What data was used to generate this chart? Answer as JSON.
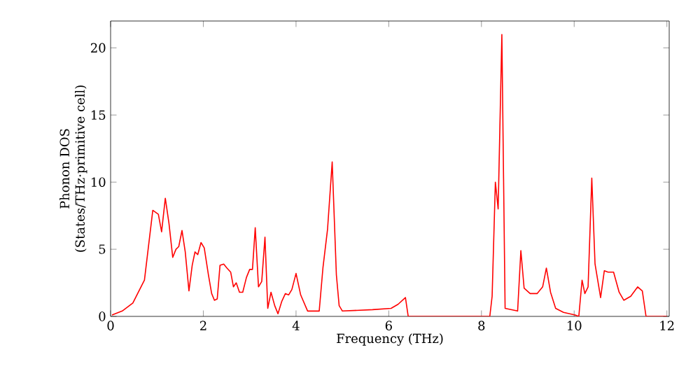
{
  "chart_data": {
    "type": "line",
    "xlabel": "Frequency (THz)",
    "ylabel": "Phonon DOS\n(States/THz·primitive cell)",
    "xlim": [
      0,
      12.05
    ],
    "ylim": [
      0,
      22
    ],
    "xticks": [
      0,
      2,
      4,
      6,
      8,
      10,
      12
    ],
    "yticks": [
      0,
      5,
      10,
      15,
      20
    ],
    "line_style": "solid",
    "marker": "none",
    "series": [
      {
        "color": "#ff0000",
        "x": [
          0.03,
          0.25,
          0.48,
          0.73,
          0.91,
          1.03,
          1.1,
          1.18,
          1.26,
          1.34,
          1.41,
          1.47,
          1.54,
          1.61,
          1.69,
          1.76,
          1.82,
          1.88,
          1.95,
          2.02,
          2.11,
          2.18,
          2.24,
          2.3,
          2.36,
          2.44,
          2.51,
          2.59,
          2.65,
          2.71,
          2.78,
          2.85,
          2.93,
          3.0,
          3.06,
          3.12,
          3.19,
          3.26,
          3.33,
          3.39,
          3.46,
          3.54,
          3.61,
          3.69,
          3.77,
          3.84,
          3.91,
          4.0,
          4.1,
          4.25,
          4.5,
          4.58,
          4.68,
          4.78,
          4.87,
          4.93,
          5.0,
          5.65,
          6.05,
          6.2,
          6.36,
          6.42,
          8.18,
          8.23,
          8.3,
          8.36,
          8.44,
          8.51,
          8.78,
          8.85,
          8.92,
          9.05,
          9.2,
          9.32,
          9.4,
          9.49,
          9.6,
          9.77,
          10.02,
          10.1,
          10.17,
          10.23,
          10.3,
          10.38,
          10.45,
          10.57,
          10.65,
          10.73,
          10.85,
          10.97,
          11.07,
          11.22,
          11.37,
          11.47,
          11.55,
          12.0
        ],
        "values": [
          0.1,
          0.4,
          1.0,
          2.7,
          7.9,
          7.6,
          6.3,
          8.8,
          6.9,
          4.4,
          5.0,
          5.2,
          6.4,
          4.8,
          1.9,
          3.8,
          4.8,
          4.6,
          5.5,
          5.1,
          3.1,
          1.7,
          1.2,
          1.3,
          3.8,
          3.9,
          3.6,
          3.3,
          2.2,
          2.5,
          1.8,
          1.8,
          2.9,
          3.5,
          3.5,
          6.6,
          2.2,
          2.6,
          5.9,
          0.6,
          1.8,
          0.8,
          0.2,
          1.1,
          1.7,
          1.6,
          2.0,
          3.2,
          1.6,
          0.4,
          0.4,
          3.6,
          6.5,
          11.5,
          3.1,
          0.8,
          0.4,
          0.5,
          0.6,
          0.9,
          1.4,
          0.0,
          0.0,
          1.5,
          10.0,
          8.0,
          21.0,
          0.6,
          0.4,
          4.9,
          2.1,
          1.7,
          1.7,
          2.2,
          3.6,
          1.8,
          0.6,
          0.3,
          0.1,
          0.0,
          2.7,
          1.7,
          2.2,
          10.3,
          3.9,
          1.4,
          3.4,
          3.3,
          3.3,
          1.8,
          1.2,
          1.5,
          2.2,
          1.9,
          0.0,
          0.0
        ]
      }
    ]
  }
}
